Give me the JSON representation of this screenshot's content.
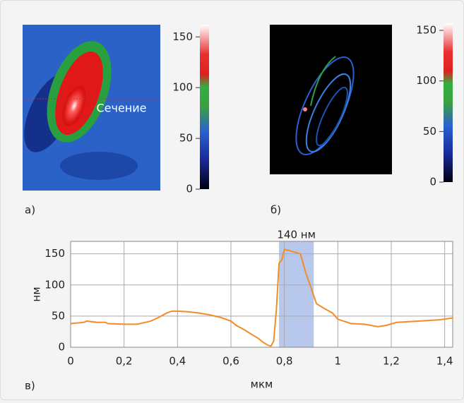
{
  "panel_a": {
    "label": "а)",
    "annotation": "Сечение",
    "colorbar": {
      "ylim": [
        0,
        162
      ],
      "yticks": [
        0,
        50,
        100,
        150
      ]
    }
  },
  "panel_b": {
    "label": "б)",
    "colorbar": {
      "ylim": [
        0,
        157
      ],
      "yticks": [
        0,
        50,
        100,
        150
      ]
    }
  },
  "chart_data": {
    "type": "line",
    "label": "в)",
    "xlabel": "мкм",
    "ylabel": "нм",
    "annotation": "140 нм",
    "highlight_x": [
      0.78,
      0.91
    ],
    "x": [
      0,
      0.05,
      0.06,
      0.1,
      0.13,
      0.14,
      0.2,
      0.25,
      0.28,
      0.3,
      0.33,
      0.36,
      0.38,
      0.4,
      0.44,
      0.48,
      0.52,
      0.56,
      0.6,
      0.62,
      0.65,
      0.68,
      0.7,
      0.72,
      0.74,
      0.75,
      0.76,
      0.77,
      0.78,
      0.79,
      0.8,
      0.82,
      0.86,
      0.88,
      0.9,
      0.92,
      0.95,
      0.98,
      1.0,
      1.05,
      1.1,
      1.15,
      1.18,
      1.22,
      1.3,
      1.38,
      1.43
    ],
    "series": [
      {
        "color": "#f28c28",
        "values": [
          38,
          40,
          42,
          40,
          40,
          38,
          37,
          37,
          40,
          42,
          48,
          55,
          58,
          58,
          57,
          55,
          52,
          48,
          42,
          35,
          28,
          20,
          15,
          8,
          3,
          2,
          10,
          60,
          135,
          140,
          157,
          155,
          150,
          120,
          95,
          70,
          62,
          55,
          45,
          38,
          37,
          33,
          35,
          40,
          42,
          44,
          47
        ]
      }
    ],
    "xlim": [
      0,
      1.43
    ],
    "ylim": [
      0,
      170
    ],
    "xticks": [
      0,
      {
        "value": 0.2,
        "label": "0,2"
      },
      {
        "value": 0.4,
        "label": "0,4"
      },
      {
        "value": 0.6,
        "label": "0,6"
      },
      {
        "value": 0.8,
        "label": "0,8"
      },
      1,
      {
        "value": 1.2,
        "label": "1,2"
      },
      {
        "value": 1.4,
        "label": "1,4"
      }
    ],
    "yticks": [
      0,
      50,
      100,
      150
    ],
    "grid": true
  }
}
